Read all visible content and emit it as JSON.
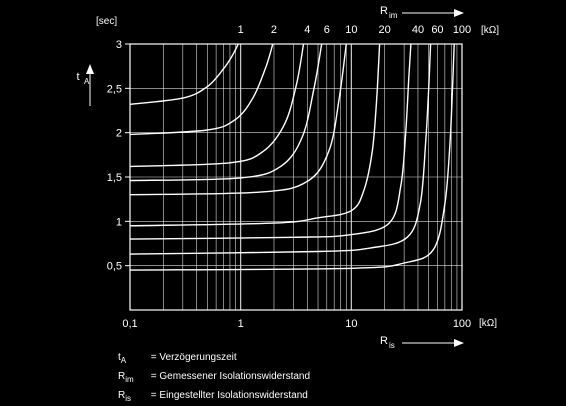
{
  "chart_data": {
    "type": "line",
    "title": "",
    "x_axis": {
      "label_main": "R",
      "label_sub": "is",
      "scale": "log",
      "range": [
        0.1,
        100
      ],
      "tick_labels": [
        "0,1",
        "1",
        "10",
        "100"
      ],
      "unit": "[kΩ]"
    },
    "y_axis": {
      "label_main": "t",
      "label_sub": "A",
      "unit": "[sec]",
      "range": [
        0,
        3
      ],
      "tick_values": [
        0.5,
        1,
        1.5,
        2,
        2.5,
        3
      ],
      "tick_labels": [
        "0,5",
        "1",
        "1,5",
        "2",
        "2,5",
        "3"
      ]
    },
    "top_axis": {
      "label_main": "R",
      "label_sub": "im",
      "unit": "[kΩ]",
      "ticks": [
        {
          "label": "1",
          "x": 1
        },
        {
          "label": "2",
          "x": 2
        },
        {
          "label": "4",
          "x": 4
        },
        {
          "label": "6",
          "x": 6
        },
        {
          "label": "10",
          "x": 10
        },
        {
          "label": "20",
          "x": 20
        },
        {
          "label": "40",
          "x": 40
        },
        {
          "label": "60",
          "x": 60
        },
        {
          "label": "100",
          "x": 100
        }
      ]
    },
    "grid": true,
    "series": [
      {
        "rim": 1,
        "points": [
          [
            0.1,
            2.32
          ],
          [
            0.3,
            2.39
          ],
          [
            0.5,
            2.52
          ],
          [
            0.7,
            2.72
          ],
          [
            0.85,
            2.88
          ],
          [
            0.95,
            3.0
          ]
        ]
      },
      {
        "rim": 2,
        "points": [
          [
            0.1,
            1.98
          ],
          [
            0.5,
            2.03
          ],
          [
            0.9,
            2.15
          ],
          [
            1.3,
            2.4
          ],
          [
            1.7,
            2.75
          ],
          [
            1.95,
            3.0
          ]
        ]
      },
      {
        "rim": 4,
        "points": [
          [
            0.1,
            1.62
          ],
          [
            0.8,
            1.66
          ],
          [
            1.6,
            1.79
          ],
          [
            2.5,
            2.1
          ],
          [
            3.2,
            2.55
          ],
          [
            3.7,
            3.0
          ]
        ]
      },
      {
        "rim": 6,
        "points": [
          [
            0.1,
            1.46
          ],
          [
            1.0,
            1.49
          ],
          [
            2.3,
            1.62
          ],
          [
            3.6,
            1.95
          ],
          [
            4.6,
            2.5
          ],
          [
            5.4,
            3.0
          ]
        ]
      },
      {
        "rim": 10,
        "points": [
          [
            0.1,
            1.3
          ],
          [
            1.5,
            1.33
          ],
          [
            4.0,
            1.45
          ],
          [
            6.3,
            1.8
          ],
          [
            7.8,
            2.4
          ],
          [
            9.0,
            3.0
          ]
        ]
      },
      {
        "rim": 20,
        "points": [
          [
            0.1,
            0.95
          ],
          [
            2.0,
            0.98
          ],
          [
            5.0,
            1.04
          ],
          [
            10,
            1.12
          ],
          [
            13,
            1.35
          ],
          [
            15.5,
            1.8
          ],
          [
            17,
            2.4
          ],
          [
            18,
            3.0
          ]
        ]
      },
      {
        "rim": 40,
        "points": [
          [
            0.1,
            0.8
          ],
          [
            3.0,
            0.82
          ],
          [
            10,
            0.85
          ],
          [
            22,
            0.98
          ],
          [
            28,
            1.4
          ],
          [
            31,
            2.0
          ],
          [
            33,
            2.6
          ],
          [
            34.5,
            3.0
          ]
        ]
      },
      {
        "rim": 60,
        "points": [
          [
            0.1,
            0.63
          ],
          [
            5.0,
            0.66
          ],
          [
            15,
            0.7
          ],
          [
            32,
            0.82
          ],
          [
            42,
            1.2
          ],
          [
            47,
            1.9
          ],
          [
            50,
            2.5
          ],
          [
            52,
            3.0
          ]
        ]
      },
      {
        "rim": 100,
        "points": [
          [
            0.1,
            0.45
          ],
          [
            10,
            0.47
          ],
          [
            30,
            0.53
          ],
          [
            55,
            0.68
          ],
          [
            70,
            1.2
          ],
          [
            78,
            1.9
          ],
          [
            82,
            2.5
          ],
          [
            85,
            3.0
          ]
        ]
      }
    ]
  },
  "legend": [
    {
      "main": "t",
      "sub": "A",
      "text": "= Verzögerungszeit"
    },
    {
      "main": "R",
      "sub": "im",
      "text": "= Gemessener Isolationswiderstand"
    },
    {
      "main": "R",
      "sub": "is",
      "text": "= Eingestellter Isolationswiderstand"
    }
  ],
  "colors": {
    "background": "#000000",
    "foreground": "#ffffff",
    "grid": "#dddddd"
  }
}
